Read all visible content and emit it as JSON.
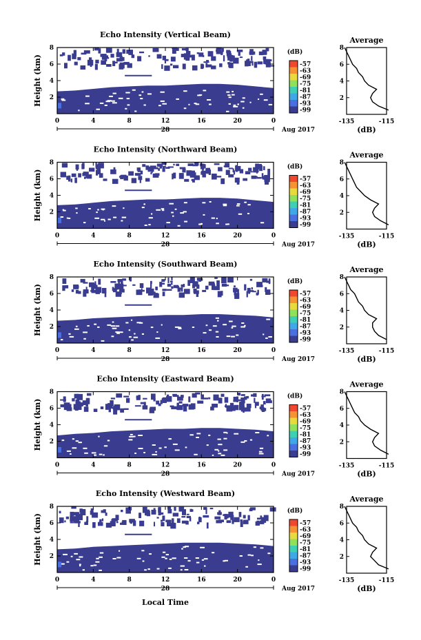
{
  "figure": {
    "xlabel": "Local Time",
    "date_label": "28",
    "month_label": "Aug 2017",
    "ylabel": "Height (km)",
    "colorbar_unit": "(dB)",
    "colorbar_ticks": [
      "-57",
      "-63",
      "-69",
      "-75",
      "-81",
      "-87",
      "-93",
      "-99"
    ],
    "colorbar_colors": [
      "#f0482e",
      "#f79234",
      "#e8d93c",
      "#8fe05a",
      "#3fd0b4",
      "#41a8e8",
      "#4a6fe0",
      "#3a3c8f"
    ],
    "x_ticks": [
      "0",
      "4",
      "8",
      "12",
      "16",
      "20",
      "0"
    ],
    "y_ticks": [
      "8",
      "6",
      "4",
      "2"
    ],
    "profile_title": "Average",
    "profile_xticks": [
      "-135",
      "-115"
    ],
    "profile_xlabel": "(dB)",
    "profile_yticks": [
      "8",
      "6",
      "4",
      "2"
    ]
  },
  "chart_data": [
    {
      "type": "heatmap",
      "title": "Echo Intensity (Vertical Beam)",
      "xlabel": "Local Time",
      "ylabel": "Height (km)",
      "xlim": [
        0,
        24
      ],
      "ylim": [
        0,
        8
      ],
      "cbar_range": [
        -99,
        -57
      ],
      "low_layer_top_km": [
        2.7,
        2.8,
        3.0,
        3.2,
        3.3,
        3.4,
        3.4,
        3.5,
        3.6,
        3.6,
        3.5,
        3.3,
        3.1
      ],
      "upper_cloud_base_km": 6.3,
      "profile": {
        "title": "Average",
        "xlim": [
          -135,
          -115
        ],
        "heights": [
          0.5,
          1.0,
          1.5,
          2.0,
          2.5,
          3.0,
          3.5,
          4.0,
          4.5,
          5.0,
          5.5,
          6.0,
          6.5,
          7.0,
          7.5,
          8.0
        ],
        "values": [
          -114,
          -119,
          -122,
          -123,
          -122,
          -120,
          -124,
          -126,
          -127,
          -129,
          -130,
          -132,
          -133,
          -134,
          -135,
          -136
        ]
      }
    },
    {
      "type": "heatmap",
      "title": "Echo Intensity (Northward Beam)",
      "xlabel": "Local Time",
      "ylabel": "Height (km)",
      "xlim": [
        0,
        24
      ],
      "ylim": [
        0,
        8
      ],
      "cbar_range": [
        -99,
        -57
      ],
      "low_layer_top_km": [
        2.8,
        2.9,
        3.1,
        3.3,
        3.4,
        3.5,
        3.5,
        3.6,
        3.7,
        3.7,
        3.6,
        3.4,
        3.2
      ],
      "upper_cloud_base_km": 6.4,
      "profile": {
        "title": "Average",
        "xlim": [
          -135,
          -115
        ],
        "heights": [
          0.5,
          1.0,
          1.5,
          2.0,
          2.5,
          3.0,
          3.5,
          4.0,
          4.5,
          5.0,
          5.5,
          6.0,
          6.5,
          7.0,
          7.5,
          8.0
        ],
        "values": [
          -114,
          -118,
          -121,
          -122,
          -121,
          -119,
          -123,
          -126,
          -128,
          -130,
          -131,
          -132,
          -133,
          -134,
          -135,
          -136
        ]
      }
    },
    {
      "type": "heatmap",
      "title": "Echo Intensity (Southward Beam)",
      "xlabel": "Local Time",
      "ylabel": "Height (km)",
      "xlim": [
        0,
        24
      ],
      "ylim": [
        0,
        8
      ],
      "cbar_range": [
        -99,
        -57
      ],
      "low_layer_top_km": [
        2.7,
        2.8,
        3.0,
        3.1,
        3.2,
        3.3,
        3.4,
        3.4,
        3.5,
        3.5,
        3.4,
        3.3,
        3.1
      ],
      "upper_cloud_base_km": 6.5,
      "profile": {
        "title": "Average",
        "xlim": [
          -135,
          -115
        ],
        "heights": [
          0.5,
          1.0,
          1.5,
          2.0,
          2.5,
          3.0,
          3.5,
          4.0,
          4.5,
          5.0,
          5.5,
          6.0,
          6.5,
          7.0,
          7.5,
          8.0
        ],
        "values": [
          -115,
          -119,
          -121,
          -122,
          -122,
          -120,
          -124,
          -126,
          -127,
          -129,
          -130,
          -131,
          -133,
          -134,
          -135,
          -136
        ]
      }
    },
    {
      "type": "heatmap",
      "title": "Echo Intensity (Eastward Beam)",
      "xlabel": "Local Time",
      "ylabel": "Height (km)",
      "xlim": [
        0,
        24
      ],
      "ylim": [
        0,
        8
      ],
      "cbar_range": [
        -99,
        -57
      ],
      "low_layer_top_km": [
        2.7,
        2.9,
        3.0,
        3.2,
        3.3,
        3.4,
        3.5,
        3.5,
        3.6,
        3.6,
        3.5,
        3.4,
        3.2
      ],
      "upper_cloud_base_km": 6.4,
      "profile": {
        "title": "Average",
        "xlim": [
          -135,
          -115
        ],
        "heights": [
          0.5,
          1.0,
          1.5,
          2.0,
          2.5,
          3.0,
          3.5,
          4.0,
          4.5,
          5.0,
          5.5,
          6.0,
          6.5,
          7.0,
          7.5,
          8.0
        ],
        "values": [
          -114,
          -118,
          -121,
          -122,
          -121,
          -119,
          -123,
          -126,
          -128,
          -129,
          -131,
          -132,
          -133,
          -134,
          -135,
          -136
        ]
      }
    },
    {
      "type": "heatmap",
      "title": "Echo Intensity (Westward Beam)",
      "xlabel": "Local Time",
      "ylabel": "Height (km)",
      "xlim": [
        0,
        24
      ],
      "ylim": [
        0,
        8
      ],
      "cbar_range": [
        -99,
        -57
      ],
      "low_layer_top_km": [
        2.8,
        2.9,
        3.1,
        3.2,
        3.3,
        3.4,
        3.5,
        3.6,
        3.6,
        3.6,
        3.5,
        3.4,
        3.2
      ],
      "upper_cloud_base_km": 6.5,
      "profile": {
        "title": "Average",
        "xlim": [
          -135,
          -115
        ],
        "heights": [
          0.5,
          1.0,
          1.5,
          2.0,
          2.5,
          3.0,
          3.5,
          4.0,
          4.5,
          5.0,
          5.5,
          6.0,
          6.5,
          7.0,
          7.5,
          8.0
        ],
        "values": [
          -114,
          -119,
          -121,
          -123,
          -122,
          -120,
          -124,
          -126,
          -127,
          -129,
          -130,
          -132,
          -133,
          -134,
          -135,
          -136
        ]
      }
    }
  ]
}
